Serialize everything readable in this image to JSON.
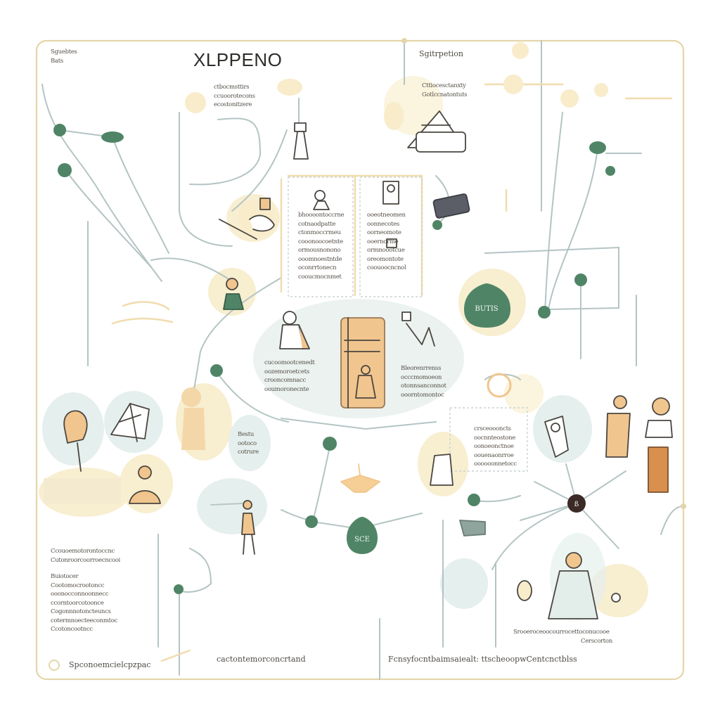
{
  "diagram": {
    "title": "XLPPENO",
    "top_left_label": [
      "Sguebtes",
      "Bats"
    ],
    "top_right_label": "Sgitrpetion",
    "colors": {
      "frame": "#e4d6aa",
      "line": "#b4c4c4",
      "node_green": "#4f8566",
      "node_dark": "#3b2a26",
      "fill_cream": "#f8eccb",
      "fill_mint": "#e3eeeb",
      "fill_orange": "#f1c58e"
    },
    "text_blocks": {
      "top_mid": [
        "ctbocmsttirs",
        "ccuoorotecons",
        "ecostonitzere"
      ],
      "top_right": [
        "Cttiocesctanxty",
        "Gotlccnatontuts"
      ],
      "card_left": [
        "bhoooontoccrne",
        "cotnaodpatte",
        "ctonmoccrmeu",
        "cooonoocoetnte",
        "ormousnonono",
        "ooomnoestntde",
        "oconrrtonecn",
        "cooucmocnmet"
      ],
      "card_right": [
        "ooeotneomen",
        "oonnecotes",
        "oorneomote",
        "ooernorme",
        "ormnoootcue",
        "oreomontote",
        "coouoocncnol"
      ],
      "center_left": [
        "cucoomootcenedt",
        "oozemoroetcets",
        "crooncomnacc",
        "ooumoronecnte"
      ],
      "center_right": [
        "Bleorenrrenss",
        "occcmomoeon",
        "otonnsanconnot",
        "ooorntomontoc"
      ],
      "mid_small": [
        "Bestu",
        "ootoco",
        "cotrure"
      ],
      "right_mid": [
        "crsceoooncts",
        "oocnnteostone",
        "oonoeonctnoe",
        "oouenaonrroe",
        "oooooonnetocc"
      ],
      "left_bottom_a": [
        "Ccouoemotorontoccnc",
        "Cutonroorcoorroecncooi"
      ],
      "left_bottom_b": [
        "Buiotocer",
        "Cootomocrootoncc",
        "ooonocconnoonnecc",
        "ccorntoorcotoonce",
        "Cogonnnotoncteuncs",
        "cotermnoecteeconmtoc",
        "Ccotoncootncc"
      ],
      "right_bottom": [
        "Srooeroceoocourrocettoconucooe",
        "Cerscorton"
      ]
    },
    "footer": {
      "left": "Spconoemcielcpzpac",
      "center": "cactontemorconcrtand",
      "right": "Fcnsyfocntbaimsaiealt: ttscheoopwCentcnctblss"
    },
    "badges": {
      "top_right_node": "BUTIS",
      "center_node": "SCE",
      "right_node": "ß"
    }
  }
}
